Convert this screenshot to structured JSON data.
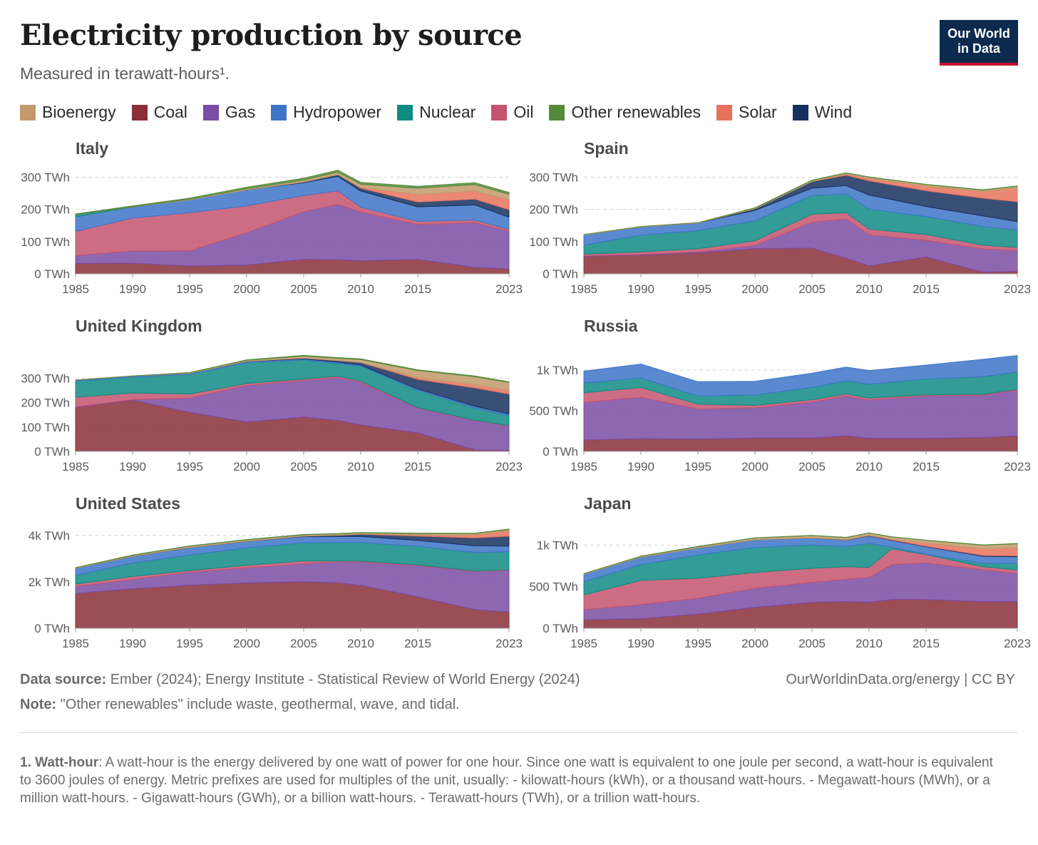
{
  "header": {
    "title": "Electricity production by source",
    "subtitle": "Measured in terawatt-hours¹.",
    "logo_line1": "Our World",
    "logo_line2": "in Data"
  },
  "legend": [
    {
      "name": "Bioenergy",
      "color": "#c19a6b"
    },
    {
      "name": "Coal",
      "color": "#8a2f38"
    },
    {
      "name": "Gas",
      "color": "#7a4ca3"
    },
    {
      "name": "Hydropower",
      "color": "#3d74c8"
    },
    {
      "name": "Nuclear",
      "color": "#0f8b84"
    },
    {
      "name": "Oil",
      "color": "#c4546e"
    },
    {
      "name": "Other renewables",
      "color": "#548b3b"
    },
    {
      "name": "Solar",
      "color": "#e8735d"
    },
    {
      "name": "Wind",
      "color": "#18305e"
    }
  ],
  "chart_data": [
    {
      "type": "area",
      "stacked": true,
      "title": "Italy",
      "x": [
        1985,
        1990,
        1995,
        2000,
        2005,
        2008,
        2010,
        2015,
        2020,
        2023
      ],
      "ylim": [
        0,
        310
      ],
      "yticks": [
        0,
        100,
        200,
        300
      ],
      "ytick_labels": [
        "0 TWh",
        "100 TWh",
        "200 TWh",
        "300 TWh"
      ],
      "xticks": [
        1985,
        1990,
        1995,
        2000,
        2005,
        2010,
        2015,
        2023
      ],
      "series": [
        {
          "name": "Coal",
          "values": [
            32,
            33,
            24,
            27,
            45,
            44,
            40,
            45,
            20,
            15
          ]
        },
        {
          "name": "Gas",
          "values": [
            25,
            38,
            48,
            100,
            148,
            172,
            152,
            108,
            139,
            117
          ]
        },
        {
          "name": "Oil",
          "values": [
            75,
            102,
            118,
            84,
            50,
            42,
            15,
            10,
            8,
            6
          ]
        },
        {
          "name": "Hydropower",
          "values": [
            45,
            35,
            40,
            50,
            40,
            45,
            50,
            45,
            47,
            38
          ]
        },
        {
          "name": "Nuclear",
          "values": [
            7,
            0,
            0,
            0,
            0,
            0,
            0,
            0,
            0,
            0
          ]
        },
        {
          "name": "Wind",
          "values": [
            0,
            0,
            0,
            0,
            2,
            5,
            9,
            15,
            18,
            23
          ]
        },
        {
          "name": "Solar",
          "values": [
            0,
            0,
            0,
            0,
            0,
            0,
            2,
            23,
            25,
            31
          ]
        },
        {
          "name": "Bioenergy",
          "values": [
            0,
            0,
            2,
            3,
            6,
            8,
            10,
            20,
            20,
            17
          ]
        },
        {
          "name": "Other renewables",
          "values": [
            2,
            3,
            3,
            5,
            6,
            6,
            6,
            6,
            6,
            6
          ]
        }
      ]
    },
    {
      "type": "area",
      "stacked": true,
      "title": "Spain",
      "x": [
        1985,
        1990,
        1995,
        2000,
        2005,
        2008,
        2010,
        2015,
        2020,
        2023
      ],
      "ylim": [
        0,
        310
      ],
      "yticks": [
        0,
        100,
        200,
        300
      ],
      "ytick_labels": [
        "0 TWh",
        "100 TWh",
        "200 TWh",
        "300 TWh"
      ],
      "xticks": [
        1985,
        1990,
        1995,
        2000,
        2005,
        2010,
        2015,
        2023
      ],
      "series": [
        {
          "name": "Coal",
          "values": [
            55,
            58,
            65,
            78,
            80,
            48,
            25,
            52,
            5,
            8
          ]
        },
        {
          "name": "Gas",
          "values": [
            1,
            2,
            3,
            10,
            80,
            122,
            96,
            52,
            72,
            64
          ]
        },
        {
          "name": "Oil",
          "values": [
            5,
            8,
            10,
            15,
            25,
            20,
            18,
            18,
            12,
            10
          ]
        },
        {
          "name": "Nuclear",
          "values": [
            28,
            52,
            56,
            62,
            58,
            58,
            62,
            56,
            58,
            54
          ]
        },
        {
          "name": "Hydropower",
          "values": [
            32,
            26,
            24,
            32,
            23,
            26,
            44,
            31,
            33,
            26
          ]
        },
        {
          "name": "Wind",
          "values": [
            0,
            0,
            0,
            5,
            21,
            32,
            44,
            49,
            55,
            62
          ]
        },
        {
          "name": "Solar",
          "values": [
            0,
            0,
            0,
            0,
            0,
            3,
            7,
            14,
            20,
            43
          ]
        },
        {
          "name": "Bioenergy",
          "values": [
            1,
            1,
            1,
            2,
            3,
            4,
            4,
            5,
            5,
            5
          ]
        },
        {
          "name": "Other renewables",
          "values": [
            0,
            0,
            0,
            1,
            1,
            1,
            1,
            1,
            1,
            1
          ]
        }
      ]
    },
    {
      "type": "area",
      "stacked": true,
      "title": "United Kingdom",
      "x": [
        1985,
        1990,
        1995,
        2000,
        2005,
        2008,
        2010,
        2015,
        2020,
        2023
      ],
      "ylim": [
        0,
        400
      ],
      "yticks": [
        0,
        100,
        200,
        300
      ],
      "ytick_labels": [
        "0 TWh",
        "100 TWh",
        "200 TWh",
        "300 TWh"
      ],
      "xticks": [
        1985,
        1990,
        1995,
        2000,
        2005,
        2010,
        2015,
        2023
      ],
      "series": [
        {
          "name": "Coal",
          "values": [
            180,
            210,
            160,
            120,
            140,
            127,
            108,
            76,
            6,
            4
          ]
        },
        {
          "name": "Gas",
          "values": [
            2,
            2,
            58,
            150,
            150,
            175,
            175,
            100,
            120,
            100
          ]
        },
        {
          "name": "Oil",
          "values": [
            40,
            27,
            17,
            8,
            6,
            6,
            5,
            3,
            2,
            2
          ]
        },
        {
          "name": "Nuclear",
          "values": [
            65,
            65,
            80,
            85,
            78,
            52,
            62,
            70,
            50,
            41
          ]
        },
        {
          "name": "Hydropower",
          "values": [
            5,
            5,
            5,
            5,
            5,
            5,
            4,
            6,
            7,
            6
          ]
        },
        {
          "name": "Wind",
          "values": [
            0,
            0,
            0,
            1,
            3,
            7,
            10,
            40,
            75,
            82
          ]
        },
        {
          "name": "Solar",
          "values": [
            0,
            0,
            0,
            0,
            0,
            0,
            0,
            7,
            13,
            14
          ]
        },
        {
          "name": "Bioenergy",
          "values": [
            0,
            0,
            2,
            4,
            8,
            9,
            12,
            29,
            33,
            33
          ]
        },
        {
          "name": "Other renewables",
          "values": [
            0,
            0,
            1,
            2,
            3,
            3,
            3,
            3,
            3,
            3
          ]
        }
      ]
    },
    {
      "type": "area",
      "stacked": true,
      "title": "Russia",
      "x": [
        1985,
        1990,
        1995,
        2000,
        2005,
        2008,
        2010,
        2015,
        2020,
        2023
      ],
      "ylim": [
        0,
        1200
      ],
      "yticks": [
        0,
        500,
        1000
      ],
      "ytick_labels": [
        "0 TWh",
        "500 TWh",
        "1k TWh"
      ],
      "xticks": [
        1985,
        1990,
        1995,
        2000,
        2005,
        2010,
        2015,
        2023
      ],
      "series": [
        {
          "name": "Coal",
          "values": [
            140,
            155,
            150,
            165,
            165,
            190,
            160,
            160,
            170,
            190
          ]
        },
        {
          "name": "Gas",
          "values": [
            460,
            510,
            370,
            370,
            440,
            490,
            470,
            520,
            520,
            560
          ]
        },
        {
          "name": "Oil",
          "values": [
            120,
            120,
            60,
            30,
            30,
            25,
            25,
            15,
            12,
            12
          ]
        },
        {
          "name": "Nuclear",
          "values": [
            120,
            118,
            100,
            130,
            150,
            163,
            170,
            195,
            215,
            215
          ]
        },
        {
          "name": "Hydropower",
          "values": [
            145,
            170,
            176,
            165,
            175,
            167,
            168,
            170,
            214,
            200
          ]
        },
        {
          "name": "Bioenergy",
          "values": [
            0,
            0,
            0,
            0,
            0,
            0,
            0,
            0,
            0,
            0
          ]
        },
        {
          "name": "Wind",
          "values": [
            0,
            0,
            0,
            0,
            0,
            0,
            0,
            0,
            0,
            0
          ]
        },
        {
          "name": "Solar",
          "values": [
            0,
            0,
            0,
            0,
            0,
            0,
            0,
            0,
            0,
            0
          ]
        },
        {
          "name": "Other renewables",
          "values": [
            0,
            0,
            0,
            0,
            0,
            0,
            0,
            0,
            0,
            0
          ]
        }
      ]
    },
    {
      "type": "area",
      "stacked": true,
      "title": "United States",
      "x": [
        1985,
        1990,
        1995,
        2000,
        2005,
        2008,
        2010,
        2015,
        2020,
        2023
      ],
      "ylim": [
        0,
        4300
      ],
      "yticks": [
        0,
        2000,
        4000
      ],
      "ytick_labels": [
        "0 TWh",
        "2k TWh",
        "4k TWh"
      ],
      "xticks": [
        1985,
        1990,
        1995,
        2000,
        2005,
        2010,
        2015,
        2023
      ],
      "series": [
        {
          "name": "Coal",
          "values": [
            1500,
            1700,
            1850,
            1950,
            2000,
            1950,
            1850,
            1350,
            800,
            700
          ]
        },
        {
          "name": "Gas",
          "values": [
            300,
            400,
            560,
            650,
            780,
            900,
            1000,
            1350,
            1650,
            1800
          ]
        },
        {
          "name": "Oil",
          "values": [
            100,
            130,
            75,
            110,
            120,
            45,
            40,
            30,
            20,
            20
          ]
        },
        {
          "name": "Nuclear",
          "values": [
            380,
            580,
            670,
            750,
            780,
            800,
            800,
            800,
            790,
            775
          ]
        },
        {
          "name": "Hydropower",
          "values": [
            300,
            290,
            320,
            280,
            270,
            255,
            265,
            250,
            290,
            245
          ]
        },
        {
          "name": "Wind",
          "values": [
            0,
            3,
            4,
            6,
            18,
            55,
            95,
            190,
            340,
            425
          ]
        },
        {
          "name": "Solar",
          "values": [
            0,
            0,
            0,
            0,
            1,
            2,
            4,
            40,
            130,
            240
          ]
        },
        {
          "name": "Bioenergy",
          "values": [
            20,
            40,
            55,
            60,
            55,
            55,
            56,
            64,
            58,
            50
          ]
        },
        {
          "name": "Other renewables",
          "values": [
            10,
            15,
            14,
            14,
            15,
            15,
            15,
            16,
            17,
            16
          ]
        }
      ]
    },
    {
      "type": "area",
      "stacked": true,
      "title": "Japan",
      "x": [
        1985,
        1990,
        1995,
        2000,
        2005,
        2008,
        2010,
        2012,
        2015,
        2020,
        2023
      ],
      "ylim": [
        0,
        1200
      ],
      "yticks": [
        0,
        500,
        1000
      ],
      "ytick_labels": [
        "0 TWh",
        "500 TWh",
        "1k TWh"
      ],
      "xticks": [
        1985,
        1990,
        1995,
        2000,
        2005,
        2010,
        2015,
        2023
      ],
      "series": [
        {
          "name": "Coal",
          "values": [
            100,
            115,
            170,
            250,
            310,
            320,
            310,
            345,
            345,
            320,
            320
          ]
        },
        {
          "name": "Gas",
          "values": [
            120,
            170,
            190,
            230,
            240,
            270,
            300,
            420,
            440,
            380,
            340
          ]
        },
        {
          "name": "Oil",
          "values": [
            180,
            290,
            240,
            190,
            170,
            150,
            120,
            190,
            100,
            40,
            40
          ]
        },
        {
          "name": "Nuclear",
          "values": [
            160,
            190,
            280,
            300,
            280,
            240,
            290,
            20,
            5,
            40,
            80
          ]
        },
        {
          "name": "Hydropower",
          "values": [
            90,
            90,
            85,
            95,
            85,
            80,
            90,
            80,
            90,
            85,
            80
          ]
        },
        {
          "name": "Wind",
          "values": [
            0,
            0,
            0,
            0,
            2,
            3,
            4,
            5,
            6,
            9,
            10
          ]
        },
        {
          "name": "Solar",
          "values": [
            0,
            0,
            0,
            0,
            1,
            2,
            4,
            7,
            35,
            80,
            95
          ]
        },
        {
          "name": "Bioenergy",
          "values": [
            5,
            10,
            15,
            20,
            25,
            25,
            25,
            30,
            35,
            45,
            50
          ]
        },
        {
          "name": "Other renewables",
          "values": [
            2,
            2,
            3,
            3,
            3,
            3,
            3,
            3,
            3,
            3,
            3
          ]
        }
      ]
    }
  ],
  "footer": {
    "source_label": "Data source:",
    "source_text": " Ember (2024); Energy Institute - Statistical Review of World Energy (2024)",
    "note_label": "Note:",
    "note_text": " \"Other renewables\" include waste, geothermal, wave, and tidal.",
    "url": "OurWorldinData.org/energy | CC BY",
    "footnote_label": "1. Watt-hour",
    "footnote_text": ": A watt-hour is the energy delivered by one watt of power for one hour. Since one watt is equivalent to one joule per second, a watt-hour is equivalent to 3600 joules of energy. Metric prefixes are used for multiples of the unit, usually: - kilowatt-hours (kWh), or a thousand watt-hours. - Megawatt-hours (MWh), or a million watt-hours. - Gigawatt-hours (GWh), or a billion watt-hours. - Terawatt-hours (TWh), or a trillion watt-hours."
  }
}
